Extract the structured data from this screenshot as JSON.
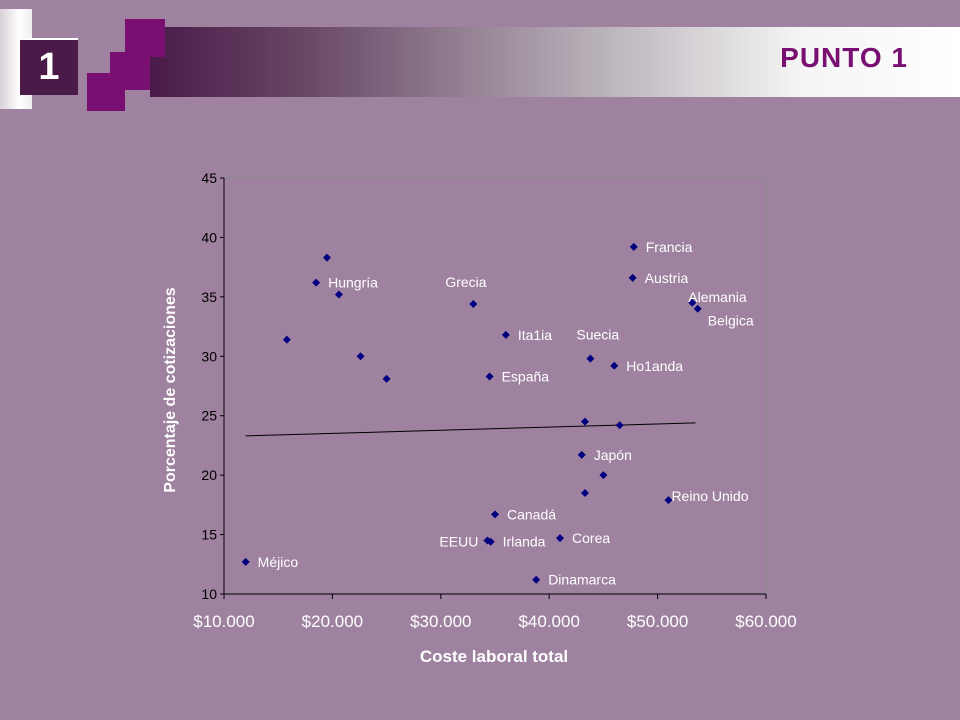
{
  "slide": {
    "number": "1",
    "title": "PUNTO 1",
    "colors": {
      "background": "#9e829f",
      "accent": "#7a0f72",
      "dark": "#4a1a48",
      "marker": "#000080"
    }
  },
  "chart_data": {
    "type": "scatter",
    "title": "",
    "xlabel": "Coste laboral total",
    "ylabel": "Porcentaje de  cotizaciones",
    "xlim": [
      10000,
      60000
    ],
    "ylim": [
      10,
      45
    ],
    "x_ticks": [
      "$10.000",
      "$20.000",
      "$30.000",
      "$40.000",
      "$50.000",
      "$60.000"
    ],
    "y_ticks": [
      "10",
      "15",
      "20",
      "25",
      "30",
      "35",
      "40",
      "45"
    ],
    "grid": false,
    "points": [
      {
        "x": 12000,
        "y": 12.7,
        "label": "Méjico"
      },
      {
        "x": 15800,
        "y": 31.4,
        "label": ""
      },
      {
        "x": 18500,
        "y": 36.2,
        "label": "Hungría"
      },
      {
        "x": 19500,
        "y": 38.3,
        "label": ""
      },
      {
        "x": 20600,
        "y": 35.2,
        "label": ""
      },
      {
        "x": 22600,
        "y": 30.0,
        "label": ""
      },
      {
        "x": 25000,
        "y": 28.1,
        "label": ""
      },
      {
        "x": 33000,
        "y": 34.4,
        "label": "Grecia"
      },
      {
        "x": 34500,
        "y": 28.3,
        "label": "España"
      },
      {
        "x": 36000,
        "y": 31.8,
        "label": "Ita1ia"
      },
      {
        "x": 43800,
        "y": 29.8,
        "label": "Suecia"
      },
      {
        "x": 46000,
        "y": 29.2,
        "label": "Ho1anda"
      },
      {
        "x": 47800,
        "y": 39.2,
        "label": "Francia"
      },
      {
        "x": 47700,
        "y": 36.6,
        "label": "Austria"
      },
      {
        "x": 53200,
        "y": 34.5,
        "label": "Alemania"
      },
      {
        "x": 53700,
        "y": 34.0,
        "label": "Belgica"
      },
      {
        "x": 43300,
        "y": 24.5,
        "label": ""
      },
      {
        "x": 46500,
        "y": 24.2,
        "label": ""
      },
      {
        "x": 43000,
        "y": 21.7,
        "label": "Japón"
      },
      {
        "x": 45000,
        "y": 20.0,
        "label": ""
      },
      {
        "x": 43300,
        "y": 18.5,
        "label": ""
      },
      {
        "x": 51000,
        "y": 17.9,
        "label": "Reino Unido"
      },
      {
        "x": 35000,
        "y": 16.7,
        "label": "Canadá"
      },
      {
        "x": 34300,
        "y": 14.5,
        "label": "EEUU"
      },
      {
        "x": 34600,
        "y": 14.4,
        "label": "Irlanda"
      },
      {
        "x": 41000,
        "y": 14.7,
        "label": "Corea"
      },
      {
        "x": 38800,
        "y": 11.2,
        "label": "Dinamarca"
      }
    ],
    "trendline": {
      "x": [
        12000,
        53500
      ],
      "y": [
        23.3,
        24.4
      ]
    }
  }
}
